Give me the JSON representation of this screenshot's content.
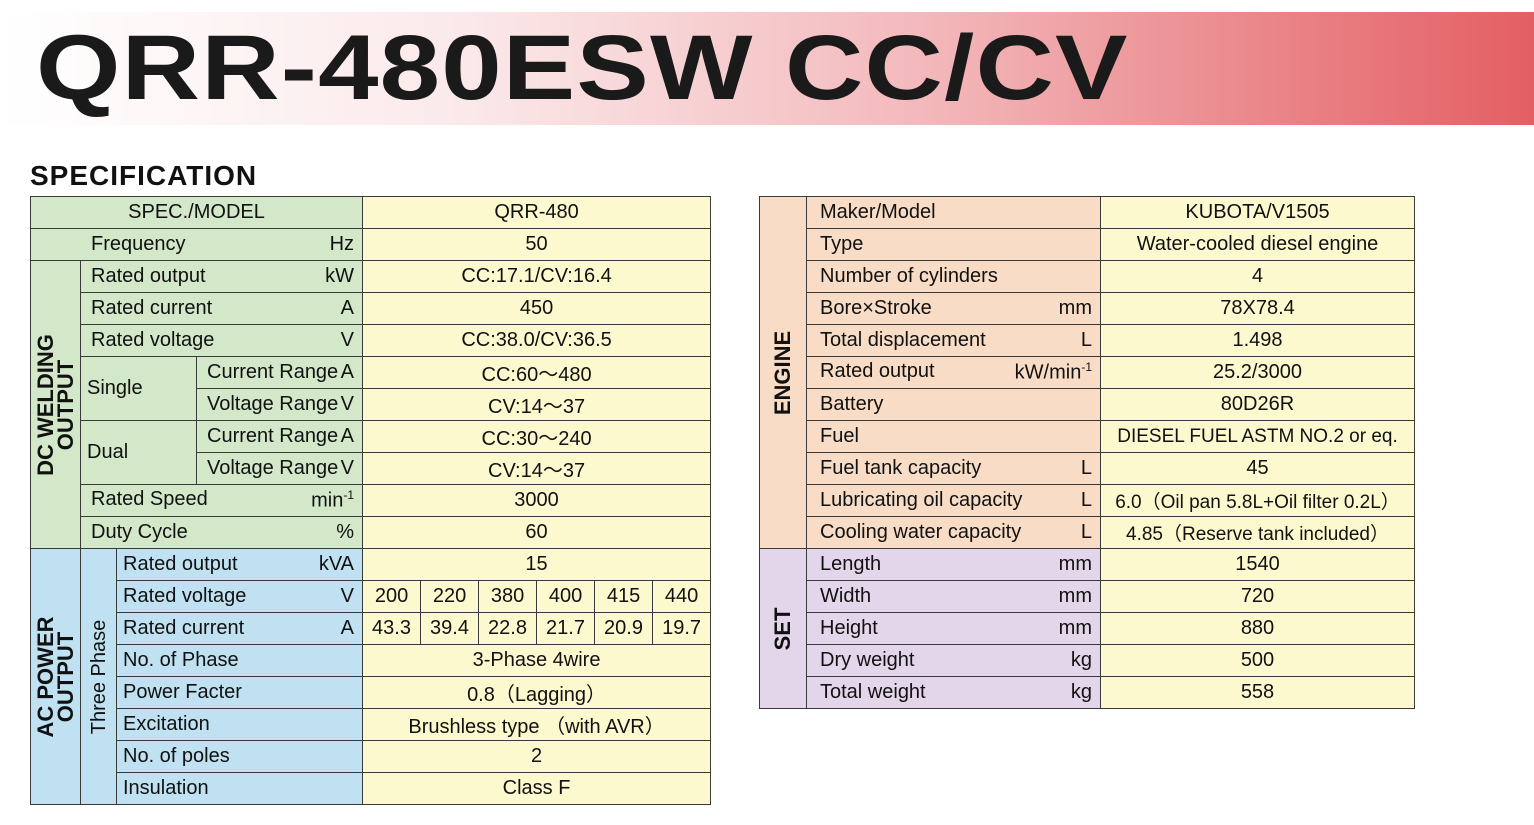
{
  "title": "QRR-480ESW CC/CV",
  "heading": "SPECIFICATION",
  "left": {
    "spec_model": {
      "label": "SPEC./MODEL",
      "value": "QRR-480"
    },
    "frequency": {
      "label": "Frequency",
      "unit": "Hz",
      "value": "50"
    },
    "dc_group": "DC WELDING OUTPUT",
    "dc": {
      "rated_output": {
        "label": "Rated output",
        "unit": "kW",
        "value": "CC:17.1/CV:16.4"
      },
      "rated_current": {
        "label": "Rated current",
        "unit": "A",
        "value": "450"
      },
      "rated_voltage": {
        "label": "Rated voltage",
        "unit": "V",
        "value": "CC:38.0/CV:36.5"
      },
      "single": {
        "label": "Single",
        "current": {
          "label": "Current Range",
          "unit": "A",
          "value": "CC:60～480"
        },
        "voltage": {
          "label": "Voltage Range",
          "unit": "V",
          "value": "CV:14～37"
        }
      },
      "dual": {
        "label": "Dual",
        "current": {
          "label": "Current Range",
          "unit": "A",
          "value": "CC:30～240"
        },
        "voltage": {
          "label": "Voltage Range",
          "unit": "V",
          "value": "CV:14～37"
        }
      },
      "rated_speed": {
        "label": "Rated Speed",
        "unit": "min",
        "unit_sup": "-1",
        "value": "3000"
      },
      "duty_cycle": {
        "label": "Duty Cycle",
        "unit": "%",
        "value": "60"
      }
    },
    "ac_group": "AC POWER OUTPUT",
    "ac_subgroup": "Three Phase",
    "ac": {
      "rated_output": {
        "label": "Rated output",
        "unit": "kVA",
        "value": "15"
      },
      "rated_voltage": {
        "label": "Rated voltage",
        "unit": "V",
        "values": [
          "200",
          "220",
          "380",
          "400",
          "415",
          "440"
        ]
      },
      "rated_current": {
        "label": "Rated current",
        "unit": "A",
        "values": [
          "43.3",
          "39.4",
          "22.8",
          "21.7",
          "20.9",
          "19.7"
        ]
      },
      "phases": {
        "label": "No. of Phase",
        "value": "3-Phase 4wire"
      },
      "power_factor": {
        "label": "Power Facter",
        "value": "0.8（Lagging）"
      },
      "excitation": {
        "label": "Excitation",
        "value": "Brushless type （with AVR）"
      },
      "poles": {
        "label": "No. of poles",
        "value": "2"
      },
      "insulation": {
        "label": "Insulation",
        "value": "Class F"
      }
    }
  },
  "right": {
    "engine_group": "ENGINE",
    "engine": [
      {
        "label": "Maker/Model",
        "unit": "",
        "value": "KUBOTA/V1505"
      },
      {
        "label": "Type",
        "unit": "",
        "value": "Water-cooled diesel engine"
      },
      {
        "label": "Number of cylinders",
        "unit": "",
        "value": "4"
      },
      {
        "label": "Bore×Stroke",
        "unit": "mm",
        "value": "78X78.4"
      },
      {
        "label": "Total displacement",
        "unit": "L",
        "value": "1.498"
      },
      {
        "label": "Rated output",
        "unit": "kW/min",
        "unit_sup": "-1",
        "value": "25.2/3000"
      },
      {
        "label": "Battery",
        "unit": "",
        "value": "80D26R"
      },
      {
        "label": "Fuel",
        "unit": "",
        "value": "DIESEL FUEL ASTM NO.2 or eq."
      },
      {
        "label": "Fuel tank capacity",
        "unit": "L",
        "value": "45"
      },
      {
        "label": "Lubricating oil capacity",
        "unit": "L",
        "value": "6.0（Oil pan 5.8L+Oil filter 0.2L）"
      },
      {
        "label": "Cooling water capacity",
        "unit": "L",
        "value": "4.85（Reserve tank included）"
      }
    ],
    "set_group": "SET",
    "set": [
      {
        "label": "Length",
        "unit": "mm",
        "value": "1540"
      },
      {
        "label": "Width",
        "unit": "mm",
        "value": "720"
      },
      {
        "label": "Height",
        "unit": "mm",
        "value": "880"
      },
      {
        "label": "Dry weight",
        "unit": "kg",
        "value": "500"
      },
      {
        "label": "Total weight",
        "unit": "kg",
        "value": "558"
      }
    ]
  }
}
